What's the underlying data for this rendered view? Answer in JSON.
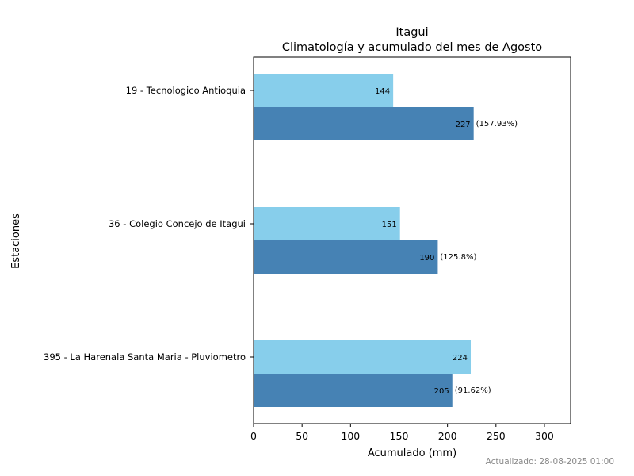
{
  "chart_data": {
    "type": "bar",
    "orientation": "horizontal",
    "title": "Itagui",
    "subtitle": "Climatología y acumulado del mes de Agosto",
    "xlabel": "Acumulado (mm)",
    "ylabel": "Estaciones",
    "xlim": [
      0,
      327
    ],
    "xticks": [
      0,
      50,
      100,
      150,
      200,
      250,
      300
    ],
    "grid": false,
    "categories": [
      "19 - Tecnologico Antioquia",
      "36 - Colegio Concejo de Itagui",
      "395 - La Harenala Santa Maria - Pluviometro"
    ],
    "series": [
      {
        "color": "#87CEEB",
        "values": [
          144,
          151,
          224
        ],
        "labels": [
          "144",
          "151",
          "224"
        ]
      },
      {
        "color": "#4682B4",
        "values": [
          227,
          190,
          205
        ],
        "labels": [
          "227",
          "190",
          "205"
        ],
        "pct_labels": [
          "(157.93%)",
          "(125.8%)",
          "(91.62%)"
        ]
      }
    ]
  },
  "footer": {
    "updated": "Actualizado: 28-08-2025 01:00"
  }
}
